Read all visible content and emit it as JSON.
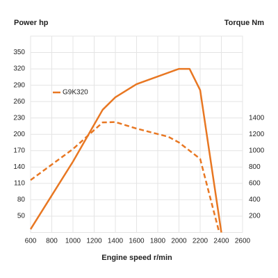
{
  "chart_data": {
    "type": "line",
    "ylabel": "Power hp",
    "y2label": "Torque Nm",
    "xlabel": "Engine speed r/min",
    "xlim": [
      600,
      2600
    ],
    "xticks": [
      600,
      800,
      1000,
      1200,
      1400,
      1600,
      1800,
      2000,
      2200,
      2400,
      2600
    ],
    "ylim": [
      20,
      380
    ],
    "yticks": [
      50,
      80,
      110,
      140,
      170,
      200,
      230,
      260,
      290,
      320,
      350
    ],
    "y2lim": [
      0,
      2400
    ],
    "y2ticks": [
      200,
      400,
      600,
      800,
      1000,
      1200,
      1400
    ],
    "grid": true,
    "legend": "upper left",
    "series": [
      {
        "name": "G9K320",
        "color": "#e87722",
        "linestyle": "solid",
        "x": [
          600,
          1000,
          1280,
          1400,
          1600,
          2000,
          2100,
          2200,
          2400
        ],
        "values": [
          26,
          150,
          245,
          268,
          292,
          320,
          320,
          281,
          20
        ]
      },
      {
        "color": "#e87722",
        "linestyle": "dashed",
        "axis": "y2",
        "x": [
          600,
          1000,
          1280,
          1400,
          1600,
          1900,
          2000,
          2200,
          2380
        ],
        "values": [
          640,
          1020,
          1345,
          1350,
          1270,
          1170,
          1100,
          900,
          0
        ]
      }
    ]
  }
}
